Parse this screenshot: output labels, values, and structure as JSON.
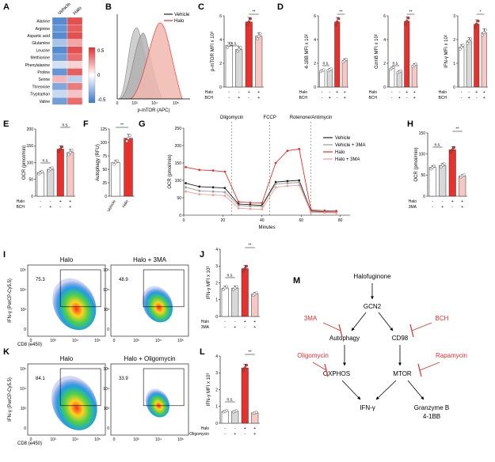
{
  "panels": {
    "A": "A",
    "B": "B",
    "C": "C",
    "D": "D",
    "E": "E",
    "F": "F",
    "G": "G",
    "H": "H",
    "I": "I",
    "J": "J",
    "K": "K",
    "L": "L",
    "M": "M"
  },
  "heatmap": {
    "columns": [
      "Vehicle",
      "Halo"
    ],
    "rows": [
      "Alanine",
      "Arginine",
      "Aspartic acid",
      "Glutamine",
      "Leucine",
      "Methionine",
      "Phenylalanine",
      "Proline",
      "Serine",
      "Threonine",
      "Tryptophan",
      "Valine"
    ],
    "values": [
      [
        -0.6,
        0.6
      ],
      [
        -0.55,
        0.55
      ],
      [
        -0.6,
        0.6
      ],
      [
        -0.3,
        0.3
      ],
      [
        -0.6,
        0.6
      ],
      [
        -0.5,
        0.5
      ],
      [
        -0.15,
        0.15
      ],
      [
        -0.55,
        0.55
      ],
      [
        0.25,
        -0.25
      ],
      [
        -0.45,
        0.45
      ],
      [
        -0.2,
        0.2
      ],
      [
        -0.5,
        0.5
      ]
    ],
    "scale_labels": [
      "0.5",
      "0",
      "-0.5"
    ]
  },
  "flow_B": {
    "legend": [
      "Vehicle",
      "Halo"
    ],
    "xlabel": "p-mTOR (APC)",
    "ticks": [
      "0",
      "10³",
      "10⁴",
      "10⁵"
    ]
  },
  "sig": {
    "ns": "n.s.",
    "star2": "**",
    "star1": "*"
  },
  "treat": {
    "halo": "Halo",
    "bch": "BCH",
    "mA": "3MA",
    "oligo": "Oligomycin",
    "minus": "-",
    "plus": "+"
  },
  "panel_C": {
    "ylabel": "p-mTOR MFI x 10³",
    "ticks": [
      "0",
      "2",
      "4",
      "6"
    ]
  },
  "panel_D": [
    {
      "ylabel": "4-1BB MFI x 10²",
      "ticks": [
        "0",
        "2",
        "4",
        "6"
      ]
    },
    {
      "ylabel": "GzmB MFI x 10²",
      "ticks": [
        "0",
        "2",
        "4",
        "6"
      ]
    },
    {
      "ylabel": "IFN-γ MFI x 10²",
      "ticks": [
        "0",
        "1",
        "2",
        "3"
      ]
    }
  ],
  "panel_E": {
    "ylabel": "OCR (pmol/min)",
    "ticks": [
      "0",
      "50",
      "100",
      "150",
      "200"
    ]
  },
  "panel_F": {
    "ylabel": "Autophagy (RFU)",
    "ticks": [
      "0",
      "25",
      "50",
      "75",
      "100",
      "125"
    ],
    "categories": [
      "Vehicle",
      "Halo"
    ]
  },
  "panel_G": {
    "ylabel": "OCR (pmol/min)",
    "xlabel": "Minutes",
    "yticks": [
      "0",
      "50",
      "100",
      "150",
      "200",
      "250"
    ],
    "xticks": [
      "0",
      "20",
      "40",
      "60",
      "80"
    ],
    "injections": [
      "Oligomycin",
      "FCCP",
      "Rotenone/Antimycin"
    ],
    "legend": [
      "Vehicle",
      "Vehicle + 3MA",
      "Halo",
      "Halo + 3MA"
    ],
    "colors": [
      "#222222",
      "#999999",
      "#e8302c",
      "#f39b94"
    ]
  },
  "panel_H": {
    "ylabel": "OCR (pmol/min)",
    "ticks": [
      "0",
      "50",
      "100",
      "150"
    ]
  },
  "flow_I": {
    "titles": [
      "Halo",
      "Halo + 3MA"
    ],
    "pcts": [
      "75.3",
      "48.9"
    ]
  },
  "flow_K": {
    "titles": [
      "Halo",
      "Halo + Oligomycin"
    ],
    "pcts": [
      "84.1",
      "33.9"
    ]
  },
  "flow_axes": {
    "ylabel": "IFN-γ (PerCP-Cy5.5)",
    "xlabel": "CD8 (e450)",
    "yticks": [
      "10⁵",
      "10⁴",
      "10³",
      "0"
    ],
    "xticks": [
      "0",
      "10³",
      "10⁴",
      "10⁵"
    ]
  },
  "panel_J": {
    "ylabel": "IFN-γ MFI x 10³",
    "ticks": [
      "0",
      "1",
      "2",
      "3",
      "4"
    ]
  },
  "panel_L": {
    "ylabel": "IFN-γ MFI x 10³",
    "ticks": [
      "0",
      "1",
      "2",
      "3",
      "4"
    ]
  },
  "pathway": {
    "nodes": [
      "Halofuginone",
      "GCN2",
      "Autophagy",
      "CD98",
      "OXPHOS",
      "MTOR",
      "IFN-γ",
      "Granzyme B",
      "4-1BB"
    ],
    "inhibitors": [
      "3MA",
      "BCH",
      "Oligomycin",
      "Rapamycin"
    ]
  },
  "chart_data": [
    {
      "panel": "C",
      "type": "bar",
      "categories": [
        "Vehicle",
        "BCH",
        "Halo",
        "Halo + BCH"
      ],
      "values": [
        4.1,
        3.7,
        6.4,
        5.0
      ],
      "ylim": [
        0,
        7
      ],
      "ylabel": "p-mTOR MFI x 10³"
    },
    {
      "panel": "D1",
      "type": "bar",
      "categories": [
        "Vehicle",
        "BCH",
        "Halo",
        "Halo + BCH"
      ],
      "values": [
        1.6,
        1.7,
        6.4,
        2.6
      ],
      "ylim": [
        0,
        7
      ],
      "ylabel": "4-1BB MFI x 10²"
    },
    {
      "panel": "D2",
      "type": "bar",
      "categories": [
        "Vehicle",
        "BCH",
        "Halo",
        "Halo + BCH"
      ],
      "values": [
        1.7,
        1.4,
        6.0,
        2.0
      ],
      "ylim": [
        0,
        6.5
      ],
      "ylabel": "GzmB MFI x 10²"
    },
    {
      "panel": "D3",
      "type": "bar",
      "categories": [
        "Vehicle",
        "BCH",
        "Halo",
        "Halo + BCH"
      ],
      "values": [
        1.9,
        2.2,
        3.0,
        2.6
      ],
      "ylim": [
        0,
        3.4
      ],
      "ylabel": "IFN-γ MFI x 10²"
    },
    {
      "panel": "E",
      "type": "bar",
      "categories": [
        "Vehicle",
        "BCH",
        "Halo",
        "Halo + BCH"
      ],
      "values": [
        70,
        80,
        140,
        130
      ],
      "ylim": [
        0,
        200
      ],
      "ylabel": "OCR (pmol/min)"
    },
    {
      "panel": "F",
      "type": "bar",
      "categories": [
        "Vehicle",
        "Halo"
      ],
      "values": [
        65,
        112
      ],
      "ylim": [
        0,
        130
      ],
      "ylabel": "Autophagy (RFU)"
    },
    {
      "panel": "G",
      "type": "line",
      "x": [
        1,
        8,
        15,
        21,
        28,
        34,
        40,
        47,
        53,
        59,
        65,
        72,
        78
      ],
      "series": [
        {
          "name": "Vehicle",
          "values": [
            92,
            82,
            80,
            78,
            32,
            30,
            28,
            95,
            98,
            100,
            12,
            10,
            9
          ]
        },
        {
          "name": "Vehicle + 3MA",
          "values": [
            80,
            70,
            68,
            66,
            28,
            26,
            25,
            90,
            92,
            94,
            10,
            9,
            8
          ]
        },
        {
          "name": "Halo",
          "values": [
            138,
            130,
            128,
            125,
            38,
            36,
            35,
            150,
            185,
            190,
            15,
            13,
            12
          ]
        },
        {
          "name": "Halo + 3MA",
          "values": [
            68,
            60,
            58,
            56,
            20,
            18,
            17,
            80,
            84,
            86,
            8,
            7,
            6
          ]
        }
      ],
      "xlabel": "Minutes",
      "ylabel": "OCR (pmol/min)",
      "ylim": [
        0,
        250
      ],
      "xlim": [
        0,
        85
      ]
    },
    {
      "panel": "H",
      "type": "bar",
      "categories": [
        "Vehicle",
        "3MA",
        "Halo",
        "Halo + 3MA"
      ],
      "values": [
        68,
        73,
        110,
        48
      ],
      "ylim": [
        0,
        150
      ],
      "ylabel": "OCR (pmol/min)"
    },
    {
      "panel": "J",
      "type": "bar",
      "categories": [
        "Vehicle",
        "3MA",
        "Halo",
        "Halo + 3MA"
      ],
      "values": [
        1.9,
        1.9,
        3.2,
        1.5
      ],
      "ylim": [
        0,
        4.5
      ],
      "ylabel": "IFN-γ MFI x 10³"
    },
    {
      "panel": "L",
      "type": "bar",
      "categories": [
        "Vehicle",
        "Oligomycin",
        "Halo",
        "Halo + Oligomycin"
      ],
      "values": [
        0.8,
        0.8,
        3.7,
        0.7
      ],
      "ylim": [
        0,
        4.5
      ],
      "ylabel": "IFN-γ MFI x 10³"
    }
  ]
}
